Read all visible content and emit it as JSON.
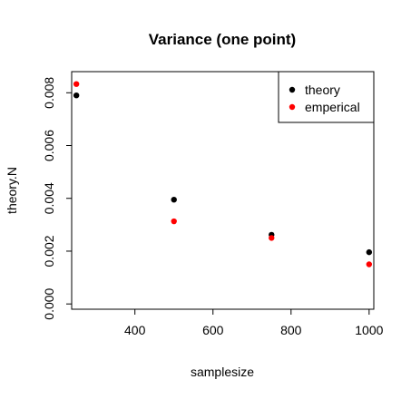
{
  "chart_data": {
    "type": "scatter",
    "title": "Variance (one point)",
    "xlabel": "samplesize",
    "ylabel": "theory.N",
    "xlim": [
      238,
      1012
    ],
    "ylim": [
      -0.0002,
      0.0088
    ],
    "x_ticks": [
      400,
      600,
      800,
      1000
    ],
    "x_tick_labels": [
      "400",
      "600",
      "800",
      "1000"
    ],
    "y_ticks": [
      0.0,
      0.002,
      0.004,
      0.006,
      0.008
    ],
    "y_tick_labels": [
      "0.000",
      "0.002",
      "0.004",
      "0.006",
      "0.008"
    ],
    "grid": false,
    "legend_position": "top-right",
    "series": [
      {
        "name": "theory",
        "color": "#000000",
        "x": [
          250,
          500,
          750,
          1000
        ],
        "y": [
          0.0079,
          0.00395,
          0.00262,
          0.00196
        ]
      },
      {
        "name": "emperical",
        "color": "#ff0000",
        "x": [
          250,
          500,
          750,
          1000
        ],
        "y": [
          0.00833,
          0.00313,
          0.0025,
          0.0015
        ]
      }
    ]
  }
}
